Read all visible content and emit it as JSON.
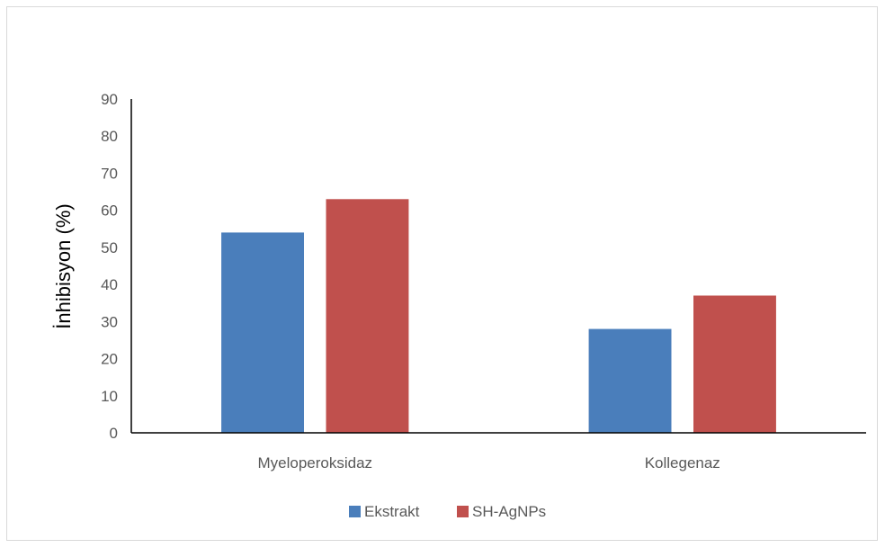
{
  "chart_data": {
    "type": "bar",
    "categories": [
      "Myeloperoksidaz",
      "Kollegenaz"
    ],
    "series": [
      {
        "name": "Ekstrakt",
        "values": [
          54,
          28
        ],
        "color": "#4a7ebb"
      },
      {
        "name": "SH-AgNPs",
        "values": [
          63,
          37
        ],
        "color": "#c0504d"
      }
    ],
    "title": "",
    "xlabel": "",
    "ylabel": "İnhibisyon (%)",
    "ylim": [
      0,
      90
    ],
    "yticks": [
      0,
      10,
      20,
      30,
      40,
      50,
      60,
      70,
      80,
      90
    ],
    "grid": false,
    "legend_position": "bottom"
  }
}
